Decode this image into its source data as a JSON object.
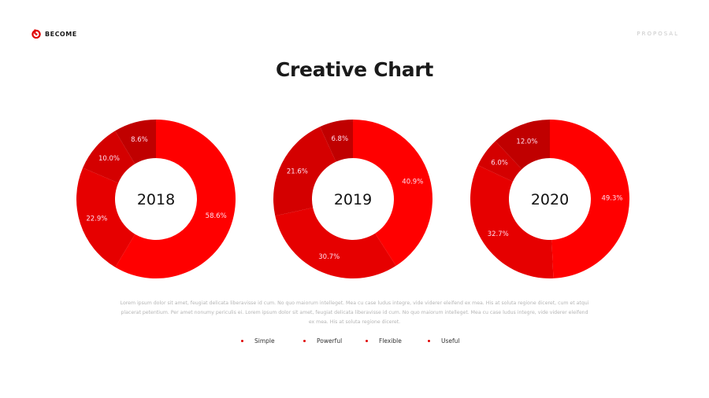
{
  "brand": {
    "name": "BECOME"
  },
  "header": {
    "right_label": "PROPOSAL"
  },
  "title": "Creative Chart",
  "body_text": "Lorem ipsum dolor sit amet, feugiat delicata liberavisse id cum. No quo maiorum intelleget. Mea cu case ludus integre, vide viderer eleifend ex mea. His at soluta regione diceret, cum et atqui placerat petentium. Per amet nonumy periculis ei. Lorem ipsum dolor sit amet, feugiat delicata liberavisse id cum. No quo maiorum intelleget. Mea cu case ludus integre, vide viderer eleifend ex mea. His at soluta regione diceret.",
  "colors": {
    "accent": "#ff0000",
    "slices": [
      "#ff0000",
      "#e60000",
      "#d40000",
      "#c00000"
    ]
  },
  "chart_data": [
    {
      "type": "pie",
      "style": "donut",
      "title": "2018",
      "categories": [
        "Simple",
        "Powerful",
        "Flexible",
        "Useful"
      ],
      "values": [
        58.6,
        22.9,
        10.0,
        8.6
      ],
      "labels": [
        "58.6%",
        "22.9%",
        "10.0%",
        "8.6%"
      ]
    },
    {
      "type": "pie",
      "style": "donut",
      "title": "2019",
      "categories": [
        "Simple",
        "Powerful",
        "Flexible",
        "Useful"
      ],
      "values": [
        40.9,
        30.7,
        21.6,
        6.8
      ],
      "labels": [
        "40.9%",
        "30.7%",
        "21.6%",
        "6.8%"
      ]
    },
    {
      "type": "pie",
      "style": "donut",
      "title": "2020",
      "categories": [
        "Simple",
        "Powerful",
        "Flexible",
        "Useful"
      ],
      "values": [
        49.3,
        32.7,
        6.0,
        12.0
      ],
      "labels": [
        "49.3%",
        "32.7%",
        "6.0%",
        "12.0%"
      ]
    }
  ],
  "legend": {
    "placement": "bottom",
    "items": [
      {
        "label": "Simple"
      },
      {
        "label": "Powerful"
      },
      {
        "label": "Flexible"
      },
      {
        "label": "Useful"
      }
    ]
  }
}
